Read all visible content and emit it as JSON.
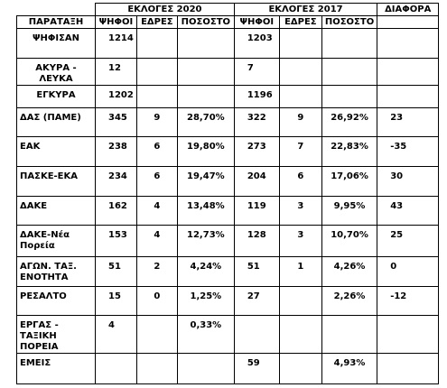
{
  "header": {
    "groups": [
      "ΕΚΛΟΓΕΣ 2020",
      "ΕΚΛΟΓΕΣ 2017",
      "ΔΙΑΦΟΡΑ"
    ],
    "columns": [
      "ΠΑΡΑΤΑΞΗ",
      "ΨΗΦΟΙ",
      "ΕΔΡΕΣ",
      "ΠΟΣΟΣΤΟ",
      "ΨΗΦΟΙ",
      "ΕΔΡΕΣ",
      "ΠΟΣΟΣΤΟ"
    ]
  },
  "table": {
    "rows": [
      [
        "ΨΗΦΙΣΑΝ",
        "1214",
        null,
        null,
        "1203",
        null,
        null,
        null
      ],
      [
        "ΑΚΥΡΑ - ΛΕΥΚΑ",
        "12",
        null,
        null,
        "7",
        null,
        null,
        null
      ],
      [
        "ΕΓΚΥΡΑ",
        "1202",
        null,
        null,
        "1196",
        null,
        null,
        null
      ],
      [
        "ΔΑΣ (ΠΑΜΕ)",
        "345",
        "9",
        "28,70%",
        "322",
        "9",
        "26,92%",
        "23"
      ],
      [
        "ΕΑΚ",
        "238",
        "6",
        "19,80%",
        "273",
        "7",
        "22,83%",
        "-35"
      ],
      [
        "ΠΑΣΚΕ-ΕΚΑ",
        "234",
        "6",
        "19,47%",
        "204",
        "6",
        "17,06%",
        "30"
      ],
      [
        "ΔΑΚΕ",
        "162",
        "4",
        "13,48%",
        "119",
        "3",
        "9,95%",
        "43"
      ],
      [
        "ΔΑΚΕ-Νέα Πορεία",
        "153",
        "4",
        "12,73%",
        "128",
        "3",
        "10,70%",
        "25"
      ],
      [
        "ΑΓΩΝ. ΤΑΞ. ΕΝΟΤΗΤΑ",
        "51",
        "2",
        "4,24%",
        "51",
        "1",
        "4,26%",
        "0"
      ],
      [
        "ΡΕΣΑΛΤΟ",
        "15",
        "0",
        "1,25%",
        "27",
        null,
        "2,26%",
        "-12"
      ],
      [
        "ΕΡΓΑΣ - ΤΑΞΙΚΗ ΠΟΡΕΙΑ",
        "4",
        null,
        "0,33%",
        null,
        null,
        null,
        null
      ],
      [
        "ΕΜΕΙΣ",
        null,
        null,
        null,
        "59",
        null,
        "4,93%",
        null
      ]
    ]
  }
}
